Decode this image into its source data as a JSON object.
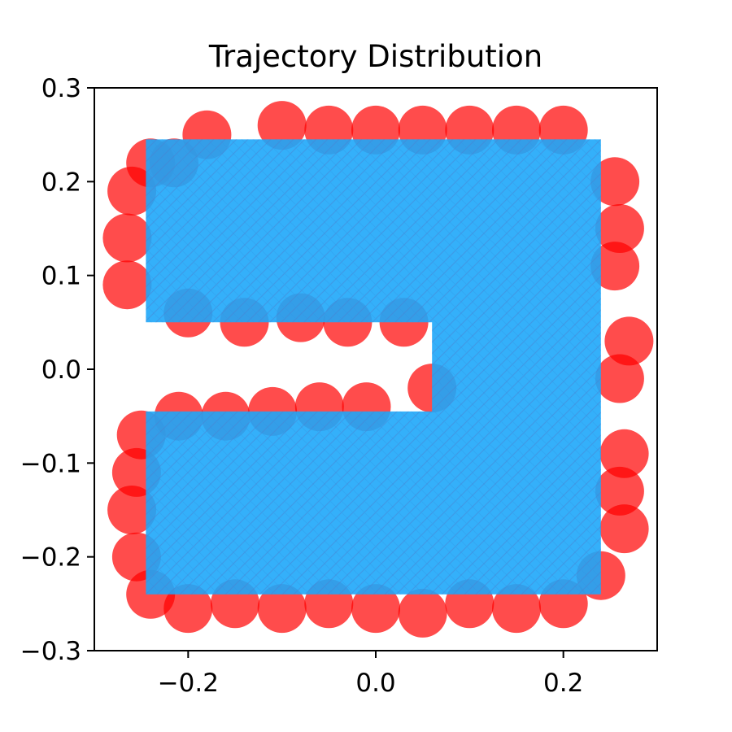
{
  "chart_data": {
    "type": "scatter",
    "title": "Trajectory Distribution",
    "xlabel": "",
    "ylabel": "",
    "xlim": [
      -0.3,
      0.3
    ],
    "ylim": [
      -0.3,
      0.3
    ],
    "xticks": [
      -0.2,
      0.0,
      0.2
    ],
    "xtick_labels": [
      "−0.2",
      "0.0",
      "0.2"
    ],
    "yticks": [
      -0.3,
      -0.2,
      -0.1,
      0.0,
      0.1,
      0.2,
      0.3
    ],
    "ytick_labels": [
      "−0.3",
      "−0.2",
      "−0.1",
      "0.0",
      "0.1",
      "0.2",
      "0.3"
    ],
    "grid": false,
    "legend": "none",
    "region": {
      "description": "C-shaped region open on the left",
      "outer_bounds": {
        "x": [
          -0.245,
          0.24
        ],
        "y": [
          -0.24,
          0.245
        ]
      },
      "notch_bounds": {
        "x": [
          -0.245,
          0.06
        ],
        "y": [
          -0.045,
          0.05
        ]
      }
    },
    "series": [
      {
        "color": "#ff0000",
        "marker": "large circle",
        "alpha": 0.7,
        "points": [
          [
            -0.215,
            0.22
          ],
          [
            -0.18,
            0.25
          ],
          [
            -0.1,
            0.26
          ],
          [
            -0.05,
            0.255
          ],
          [
            0.0,
            0.255
          ],
          [
            0.05,
            0.255
          ],
          [
            0.1,
            0.255
          ],
          [
            0.15,
            0.255
          ],
          [
            0.2,
            0.255
          ],
          [
            0.255,
            0.2
          ],
          [
            0.26,
            0.15
          ],
          [
            0.255,
            0.11
          ],
          [
            0.27,
            0.03
          ],
          [
            0.26,
            -0.01
          ],
          [
            0.265,
            -0.09
          ],
          [
            0.26,
            -0.13
          ],
          [
            0.265,
            -0.17
          ],
          [
            0.24,
            -0.22
          ],
          [
            0.2,
            -0.25
          ],
          [
            0.15,
            -0.255
          ],
          [
            0.1,
            -0.25
          ],
          [
            0.05,
            -0.26
          ],
          [
            0.0,
            -0.255
          ],
          [
            -0.05,
            -0.25
          ],
          [
            -0.1,
            -0.255
          ],
          [
            -0.15,
            -0.25
          ],
          [
            -0.2,
            -0.255
          ],
          [
            -0.24,
            -0.24
          ],
          [
            -0.255,
            -0.2
          ],
          [
            -0.26,
            -0.15
          ],
          [
            -0.255,
            -0.11
          ],
          [
            -0.25,
            -0.07
          ],
          [
            -0.21,
            -0.05
          ],
          [
            -0.16,
            -0.05
          ],
          [
            -0.11,
            -0.045
          ],
          [
            -0.06,
            -0.04
          ],
          [
            -0.01,
            -0.04
          ],
          [
            0.06,
            -0.02
          ],
          [
            -0.2,
            0.06
          ],
          [
            -0.14,
            0.05
          ],
          [
            -0.08,
            0.055
          ],
          [
            -0.03,
            0.05
          ],
          [
            0.03,
            0.05
          ],
          [
            -0.265,
            0.09
          ],
          [
            -0.265,
            0.14
          ],
          [
            -0.26,
            0.19
          ],
          [
            -0.24,
            0.22
          ]
        ]
      },
      {
        "color": "#1ea7fa",
        "marker": "dense small points",
        "alpha": 0.9,
        "fills_region": true
      }
    ]
  }
}
